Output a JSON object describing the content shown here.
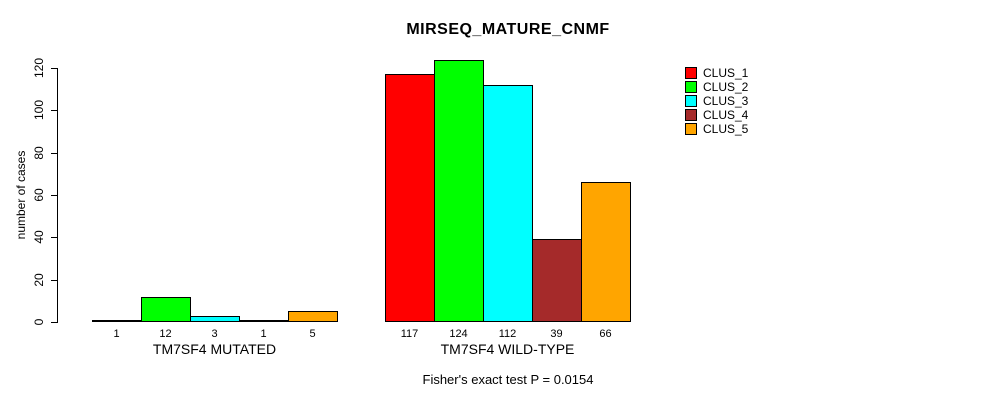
{
  "title": "MIRSEQ_MATURE_CNMF",
  "y_axis": {
    "label": "number of cases",
    "ticks": [
      0,
      20,
      40,
      60,
      80,
      100,
      120
    ]
  },
  "footer": "Fisher's exact test P = 0.0154",
  "legend": {
    "items": [
      {
        "label": "CLUS_1",
        "color": "#FF0000"
      },
      {
        "label": "CLUS_2",
        "color": "#00FF00"
      },
      {
        "label": "CLUS_3",
        "color": "#00FFFF"
      },
      {
        "label": "CLUS_4",
        "color": "#A52A2A"
      },
      {
        "label": "CLUS_5",
        "color": "#FFA500"
      }
    ]
  },
  "chart_data": {
    "type": "bar",
    "title": "MIRSEQ_MATURE_CNMF",
    "ylabel": "number of cases",
    "ylim": [
      0,
      124
    ],
    "yticks": [
      0,
      20,
      40,
      60,
      80,
      100,
      120
    ],
    "grid": false,
    "legend_position": "top-right",
    "series": [
      "CLUS_1",
      "CLUS_2",
      "CLUS_3",
      "CLUS_4",
      "CLUS_5"
    ],
    "colors": [
      "#FF0000",
      "#00FF00",
      "#00FFFF",
      "#A52A2A",
      "#FFA500"
    ],
    "groups": [
      {
        "label": "TM7SF4 MUTATED",
        "values": [
          1,
          12,
          3,
          1,
          5
        ]
      },
      {
        "label": "TM7SF4 WILD-TYPE",
        "values": [
          117,
          124,
          112,
          39,
          66
        ]
      }
    ],
    "bar_value_labels": true,
    "annotation": "Fisher's exact test P = 0.0154"
  }
}
